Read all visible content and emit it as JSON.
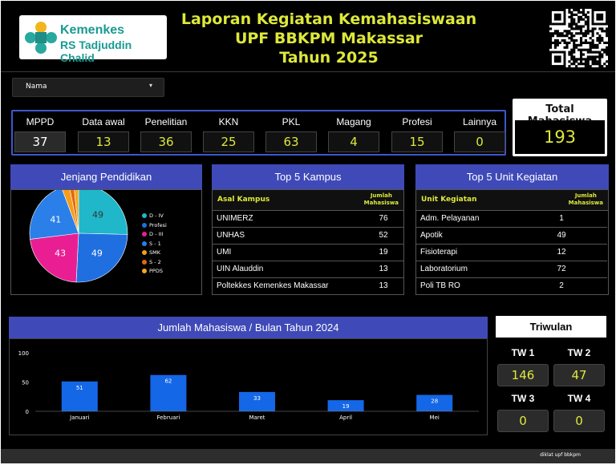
{
  "header": {
    "logo": {
      "line1": "Kemenkes",
      "line2": "RS Tadjuddin Chalid"
    },
    "title_lines": [
      "Laporan Kegiatan Kemahasiswaan",
      "UPF BBKPM Makassar",
      "Tahun 2025"
    ]
  },
  "filter": {
    "label": "Nama"
  },
  "categories": [
    {
      "label": "MPPD",
      "value": "37"
    },
    {
      "label": "Data awal",
      "value": "13"
    },
    {
      "label": "Penelitian",
      "value": "36"
    },
    {
      "label": "KKN",
      "value": "25"
    },
    {
      "label": "PKL",
      "value": "63"
    },
    {
      "label": "Magang",
      "value": "4"
    },
    {
      "label": "Profesi",
      "value": "15"
    },
    {
      "label": "Lainnya",
      "value": "0"
    }
  ],
  "total": {
    "label": "Total Mahasiswa",
    "value": "193"
  },
  "jenjang": {
    "title": "Jenjang Pendidikan",
    "slices": [
      {
        "name": "D - IV",
        "value": 49,
        "label": "49",
        "color": "#1fb7c9"
      },
      {
        "name": "Profesi",
        "value": 49,
        "label": "49",
        "color": "#1f6fe0"
      },
      {
        "name": "D - III",
        "value": 43,
        "label": "43",
        "color": "#ea1e93"
      },
      {
        "name": "S - 1",
        "value": 41,
        "label": "41",
        "color": "#2a7fe8"
      },
      {
        "name": "SMK",
        "value": 5,
        "label": "",
        "color": "#f59d1c"
      },
      {
        "name": "S - 2",
        "value": 3,
        "label": "",
        "color": "#e36a0b"
      },
      {
        "name": "PPDS",
        "value": 3,
        "label": "",
        "color": "#f7a61e"
      }
    ]
  },
  "kampus": {
    "title": "Top 5 Kampus",
    "col1": "Asal Kampus",
    "col2a": "Jumlah",
    "col2b": "Mahasiswa",
    "rows": [
      {
        "name": "UNIMERZ",
        "value": "76"
      },
      {
        "name": "UNHAS",
        "value": "52"
      },
      {
        "name": "UMI",
        "value": "19"
      },
      {
        "name": "UIN Alauddin",
        "value": "13"
      },
      {
        "name": "Poltekkes Kemenkes Makassar",
        "value": "13"
      }
    ]
  },
  "unit": {
    "title": "Top 5 Unit Kegiatan",
    "col1": "Unit Kegiatan",
    "col2a": "Jumlah",
    "col2b": "Mahasiswa",
    "rows": [
      {
        "name": "Adm. Pelayanan",
        "value": "1"
      },
      {
        "name": "Apotik",
        "value": "49"
      },
      {
        "name": "Fisioterapi",
        "value": "12"
      },
      {
        "name": "Laboratorium",
        "value": "72"
      },
      {
        "name": "Poli TB RO",
        "value": "2"
      }
    ]
  },
  "triwulan": {
    "title": "Triwulan",
    "items": [
      {
        "label": "TW 1",
        "value": "146"
      },
      {
        "label": "TW 2",
        "value": "47"
      },
      {
        "label": "TW 3",
        "value": "0"
      },
      {
        "label": "TW 4",
        "value": "0"
      }
    ]
  },
  "footer": {
    "text": "diklat upf bbkpm"
  },
  "chart_data": {
    "type": "bar",
    "title": "Jumlah Mahasiswa / Bulan Tahun 2024",
    "categories": [
      "Januari",
      "Februari",
      "Maret",
      "April",
      "Mei"
    ],
    "values": [
      51,
      62,
      33,
      19,
      28
    ],
    "yticks": [
      0,
      50,
      100
    ],
    "ylim": [
      0,
      100
    ],
    "xlabel": "",
    "ylabel": "",
    "bar_color": "#1467e6",
    "grid": false
  }
}
